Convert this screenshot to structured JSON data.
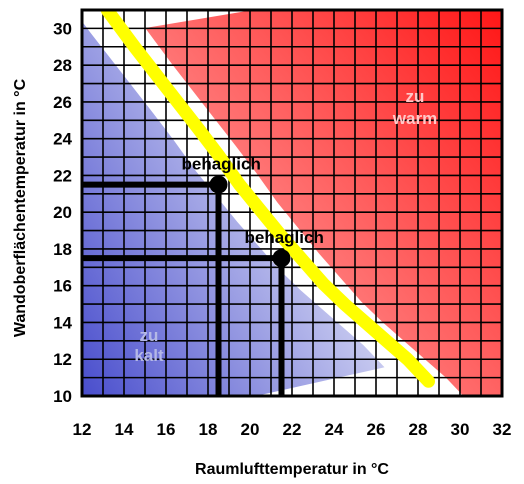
{
  "chart_data": {
    "type": "line",
    "title": "",
    "xlabel": "Raumlufttemperatur in °C",
    "ylabel": "Wandoberflächentemperatur in °C",
    "xlim": [
      12,
      32
    ],
    "ylim": [
      10,
      31
    ],
    "x_ticks": [
      12,
      14,
      16,
      18,
      20,
      22,
      24,
      26,
      28,
      30,
      32
    ],
    "y_ticks": [
      10,
      12,
      14,
      16,
      18,
      20,
      22,
      24,
      26,
      28,
      30
    ],
    "x_tick_labels": [
      "12",
      "14",
      "16",
      "18",
      "20",
      "22",
      "24",
      "26",
      "28",
      "30",
      "32"
    ],
    "y_tick_labels": [
      "10",
      "12",
      "14",
      "16",
      "18",
      "20",
      "22",
      "24",
      "26",
      "28",
      "30"
    ],
    "grid": true,
    "series": [
      {
        "role": "comfort-curve",
        "color": "#ffff00",
        "x": [
          13.2,
          14.5,
          16,
          17.5,
          18.5,
          19.5,
          20.5,
          21.5,
          22.5,
          23.5,
          24.5,
          26,
          27.5,
          28.5
        ],
        "y": [
          31,
          29,
          26.8,
          24.6,
          23.1,
          21.5,
          20.1,
          18.7,
          17.4,
          16.1,
          15,
          13.5,
          12,
          10.8
        ]
      }
    ],
    "regions": [
      {
        "label": "zu kalt",
        "color": "#2a33b8"
      },
      {
        "label": "zu warm",
        "color": "#ff2a2a"
      }
    ],
    "comfort_points": [
      {
        "label": "behaglich",
        "x": 18.5,
        "y": 21.5
      },
      {
        "label": "behaglich",
        "x": 21.5,
        "y": 17.5
      }
    ]
  }
}
